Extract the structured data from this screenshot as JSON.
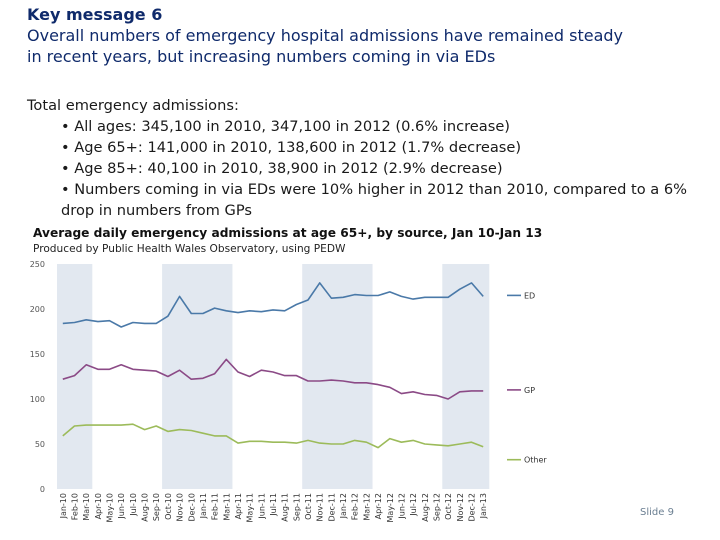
{
  "heading": {
    "title": "Key message 6",
    "subtitle_lines": [
      "Overall numbers of emergency hospital admissions have remained steady",
      "in recent years, but increasing numbers coming in via EDs"
    ]
  },
  "body": {
    "intro": "Total emergency admissions:",
    "bullets": [
      "All ages: 345,100 in 2010, 347,100 in 2012  (0.6% increase)",
      "Age 65+: 141,000 in 2010, 138,600 in 2012 (1.7% decrease)",
      "Age 85+: 40,100 in 2010, 38,900 in 2012 (2.9% decrease)",
      "Numbers coming in via EDs were 10% higher in 2012 than 2010, compared to a 6% drop in numbers from GPs"
    ],
    "bullet_glyph": "•"
  },
  "chart_data": {
    "type": "line",
    "title": "Average daily emergency admissions at age 65+, by source, Jan 10-Jan 13",
    "subtitle": "Produced by Public Health Wales Observatory, using PEDW",
    "categories": [
      "Jan-10",
      "Feb-10",
      "Mar-10",
      "Apr-10",
      "May-10",
      "Jun-10",
      "Jul-10",
      "Aug-10",
      "Sep-10",
      "Oct-10",
      "Nov-10",
      "Dec-10",
      "Jan-11",
      "Feb-11",
      "Mar-11",
      "Apr-11",
      "May-11",
      "Jun-11",
      "Jul-11",
      "Aug-11",
      "Sep-11",
      "Oct-11",
      "Nov-11",
      "Dec-11",
      "Jan-12",
      "Feb-12",
      "Mar-12",
      "Apr-12",
      "May-12",
      "Jun-12",
      "Jul-12",
      "Aug-12",
      "Sep-12",
      "Oct-12",
      "Nov-12",
      "Dec-12",
      "Jan-13"
    ],
    "ylim": [
      0,
      250
    ],
    "yticks": [
      0,
      50,
      100,
      150,
      200,
      250
    ],
    "xlabel": "",
    "ylabel": "",
    "shaded_months": [
      "Jan-10",
      "Feb-10",
      "Mar-10",
      "Oct-10",
      "Nov-10",
      "Dec-10",
      "Jan-11",
      "Feb-11",
      "Mar-11",
      "Oct-11",
      "Nov-11",
      "Dec-11",
      "Jan-12",
      "Feb-12",
      "Mar-12",
      "Oct-12",
      "Nov-12",
      "Dec-12",
      "Jan-13"
    ],
    "series": [
      {
        "name": "ED",
        "color": "#4a79a8",
        "values": [
          184,
          185,
          188,
          186,
          187,
          180,
          185,
          184,
          184,
          192,
          214,
          195,
          195,
          201,
          198,
          196,
          198,
          197,
          199,
          198,
          205,
          210,
          229,
          212,
          213,
          216,
          215,
          215,
          219,
          214,
          211,
          213,
          213,
          213,
          222,
          229,
          214
        ]
      },
      {
        "name": "GP",
        "color": "#8b4a86",
        "values": [
          122,
          126,
          138,
          133,
          133,
          138,
          133,
          132,
          131,
          125,
          132,
          122,
          123,
          128,
          144,
          130,
          125,
          132,
          130,
          126,
          126,
          120,
          120,
          121,
          120,
          118,
          118,
          116,
          113,
          106,
          108,
          105,
          104,
          100,
          108,
          109,
          109
        ]
      },
      {
        "name": "Other",
        "color": "#9cbb5a",
        "values": [
          59,
          70,
          71,
          71,
          71,
          71,
          72,
          66,
          70,
          64,
          66,
          65,
          62,
          59,
          59,
          51,
          53,
          53,
          52,
          52,
          51,
          54,
          51,
          50,
          50,
          54,
          52,
          46,
          56,
          52,
          54,
          50,
          49,
          48,
          50,
          52,
          47
        ]
      }
    ],
    "grid": false,
    "legend": "right, next to line ends"
  },
  "footer": {
    "slide_label": "Slide 9"
  }
}
